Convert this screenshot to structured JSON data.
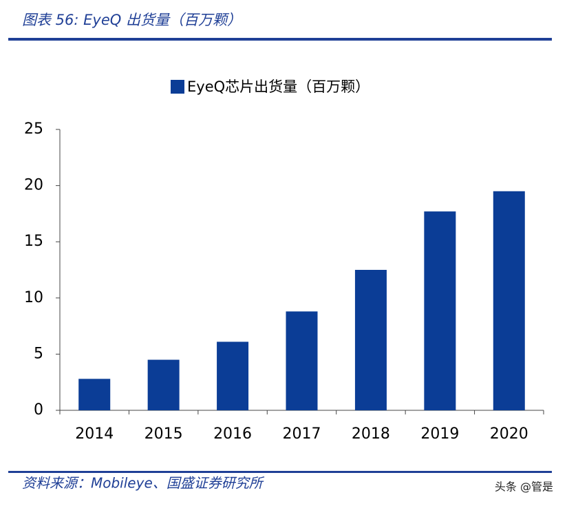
{
  "chart_data": {
    "type": "bar",
    "title": "图表 56:  EyeQ 出货量（百万颗）",
    "categories": [
      "2014",
      "2015",
      "2016",
      "2017",
      "2018",
      "2019",
      "2020"
    ],
    "series": [
      {
        "name": "EyeQ芯片出货量（百万颗）",
        "color": "#0b3d96",
        "values": [
          2.8,
          4.5,
          6.1,
          8.8,
          12.5,
          17.7,
          19.5
        ]
      }
    ],
    "ylim": [
      0,
      25
    ],
    "yticks": [
      0,
      5,
      10,
      15,
      20,
      25
    ],
    "grid": false,
    "source": "资料来源：Mobileye、国盛证券研究所"
  },
  "watermark": "头条 @管是"
}
